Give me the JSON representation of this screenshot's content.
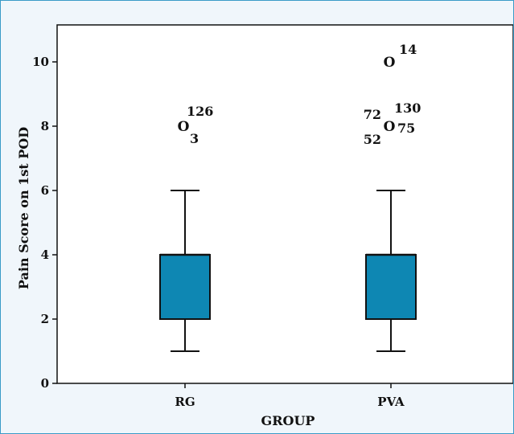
{
  "chart_data": {
    "type": "boxplot",
    "title": "",
    "xlabel": "GROUP",
    "ylabel": "Pain Score on 1st POD",
    "ylim": [
      0,
      11
    ],
    "yticks": [
      0,
      2,
      4,
      6,
      8,
      10
    ],
    "grid": false,
    "categories": [
      "RG",
      "PVA"
    ],
    "box_color": "#0e87b3",
    "outlier_symbol": "O",
    "boxes": [
      {
        "category": "RG",
        "whisker_low": 1,
        "q1": 2,
        "median": 4,
        "q3": 4,
        "whisker_high": 6,
        "outliers": [
          {
            "value": 8,
            "labels": [
              "3",
              "126"
            ]
          }
        ]
      },
      {
        "category": "PVA",
        "whisker_low": 1,
        "q1": 2,
        "median": 4,
        "q3": 4,
        "whisker_high": 6,
        "outliers": [
          {
            "value": 10,
            "labels": [
              "14"
            ]
          },
          {
            "value": 8,
            "labels": [
              "72",
              "130",
              "52",
              "75"
            ]
          }
        ]
      }
    ]
  }
}
